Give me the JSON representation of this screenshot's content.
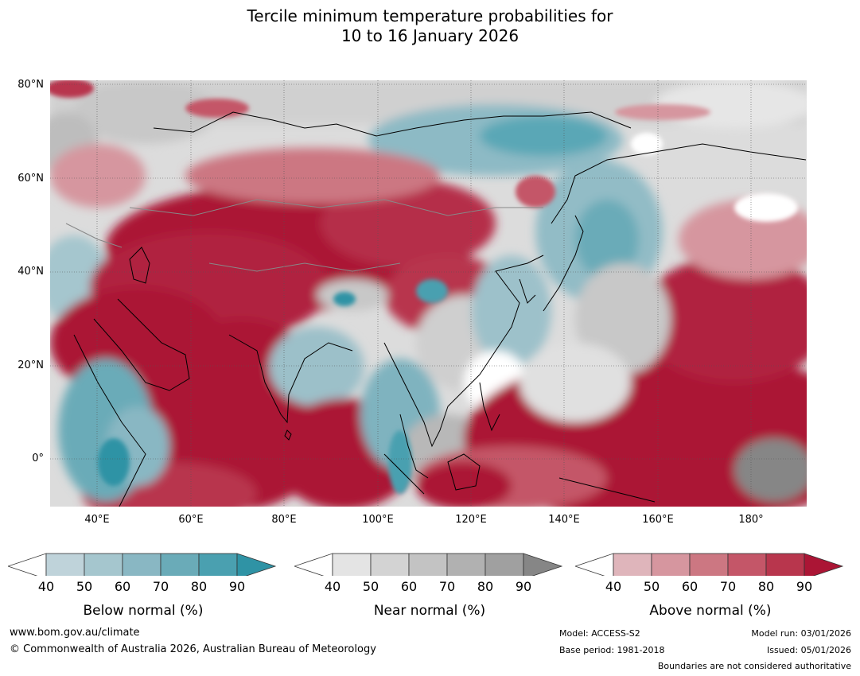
{
  "title": {
    "line1": "Tercile minimum temperature probabilities for",
    "line2": "10 to 16 January 2026"
  },
  "map": {
    "latitude_labels": [
      "80°N",
      "60°N",
      "40°N",
      "20°N",
      "0°"
    ],
    "longitude_labels": [
      "40°E",
      "60°E",
      "80°E",
      "100°E",
      "120°E",
      "140°E",
      "160°E",
      "180°"
    ]
  },
  "legends": [
    {
      "name": "below",
      "title": "Below normal (%)",
      "ticks": [
        "40",
        "50",
        "60",
        "70",
        "80",
        "90"
      ],
      "colors": [
        "#ffffff",
        "#bfd3da",
        "#a5c6ce",
        "#89b7c3",
        "#6aabb8",
        "#4aa0b0",
        "#2f93a5"
      ]
    },
    {
      "name": "near",
      "title": "Near normal (%)",
      "ticks": [
        "40",
        "50",
        "60",
        "70",
        "80",
        "90"
      ],
      "colors": [
        "#ffffff",
        "#e4e4e4",
        "#d3d3d3",
        "#c3c3c3",
        "#b1b1b1",
        "#a0a0a0",
        "#868686"
      ]
    },
    {
      "name": "above",
      "title": "Above normal (%)",
      "ticks": [
        "40",
        "50",
        "60",
        "70",
        "80",
        "90"
      ],
      "colors": [
        "#ffffff",
        "#dfb5bb",
        "#d6969f",
        "#cc7782",
        "#c45668",
        "#b8364d",
        "#ab1535"
      ]
    }
  ],
  "footer": {
    "website": "www.bom.gov.au/climate",
    "copyright": "© Commonwealth of Australia 2026, Australian Bureau of Meteorology",
    "model": "Model: ACCESS-S2",
    "base_period": "Base period: 1981-2018",
    "model_run": "Model run: 03/01/2026",
    "issued": "Issued: 05/01/2026",
    "boundaries": "Boundaries are not considered authoritative"
  }
}
